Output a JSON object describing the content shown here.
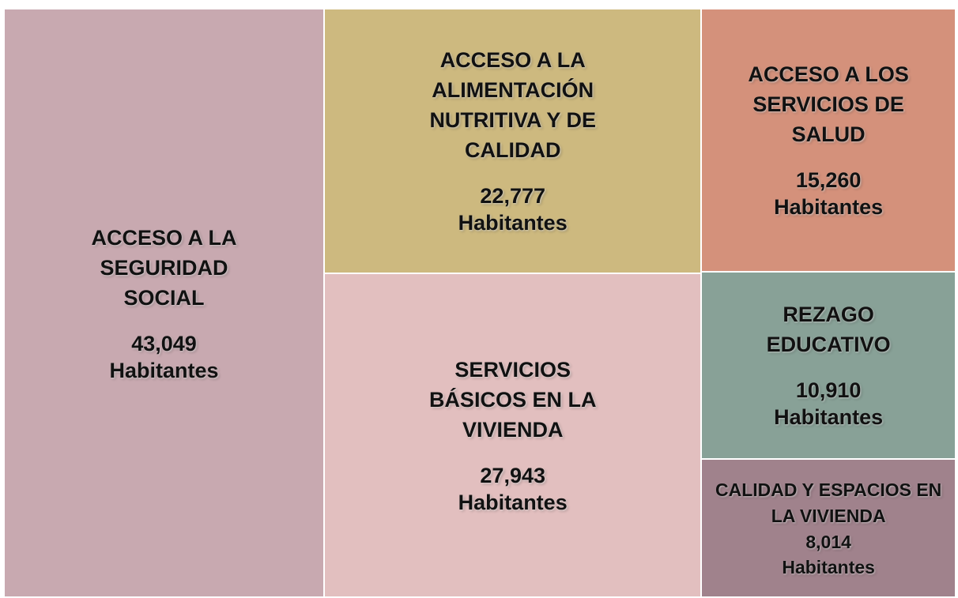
{
  "chart_data": {
    "type": "treemap",
    "categories": [
      "ACCESO A LA SEGURIDAD SOCIAL",
      "ACCESO A LA ALIMENTACIÓN NUTRITIVA Y DE CALIDAD",
      "SERVICIOS BÁSICOS EN LA VIVIENDA",
      "ACCESO A LOS SERVICIOS DE SALUD",
      "REZAGO EDUCATIVO",
      "CALIDAD Y ESPACIOS EN LA VIVIENDA"
    ],
    "values": [
      43049,
      22777,
      27943,
      15260,
      10910,
      8014
    ],
    "value_labels": [
      "43,049",
      "22,777",
      "27,943",
      "15,260",
      "10,910",
      "8,014"
    ],
    "unit": "Habitantes",
    "colors": [
      "#c8a9b0",
      "#cdb97f",
      "#e2bfbf",
      "#d4917b",
      "#88a197",
      "#a0828c"
    ]
  }
}
